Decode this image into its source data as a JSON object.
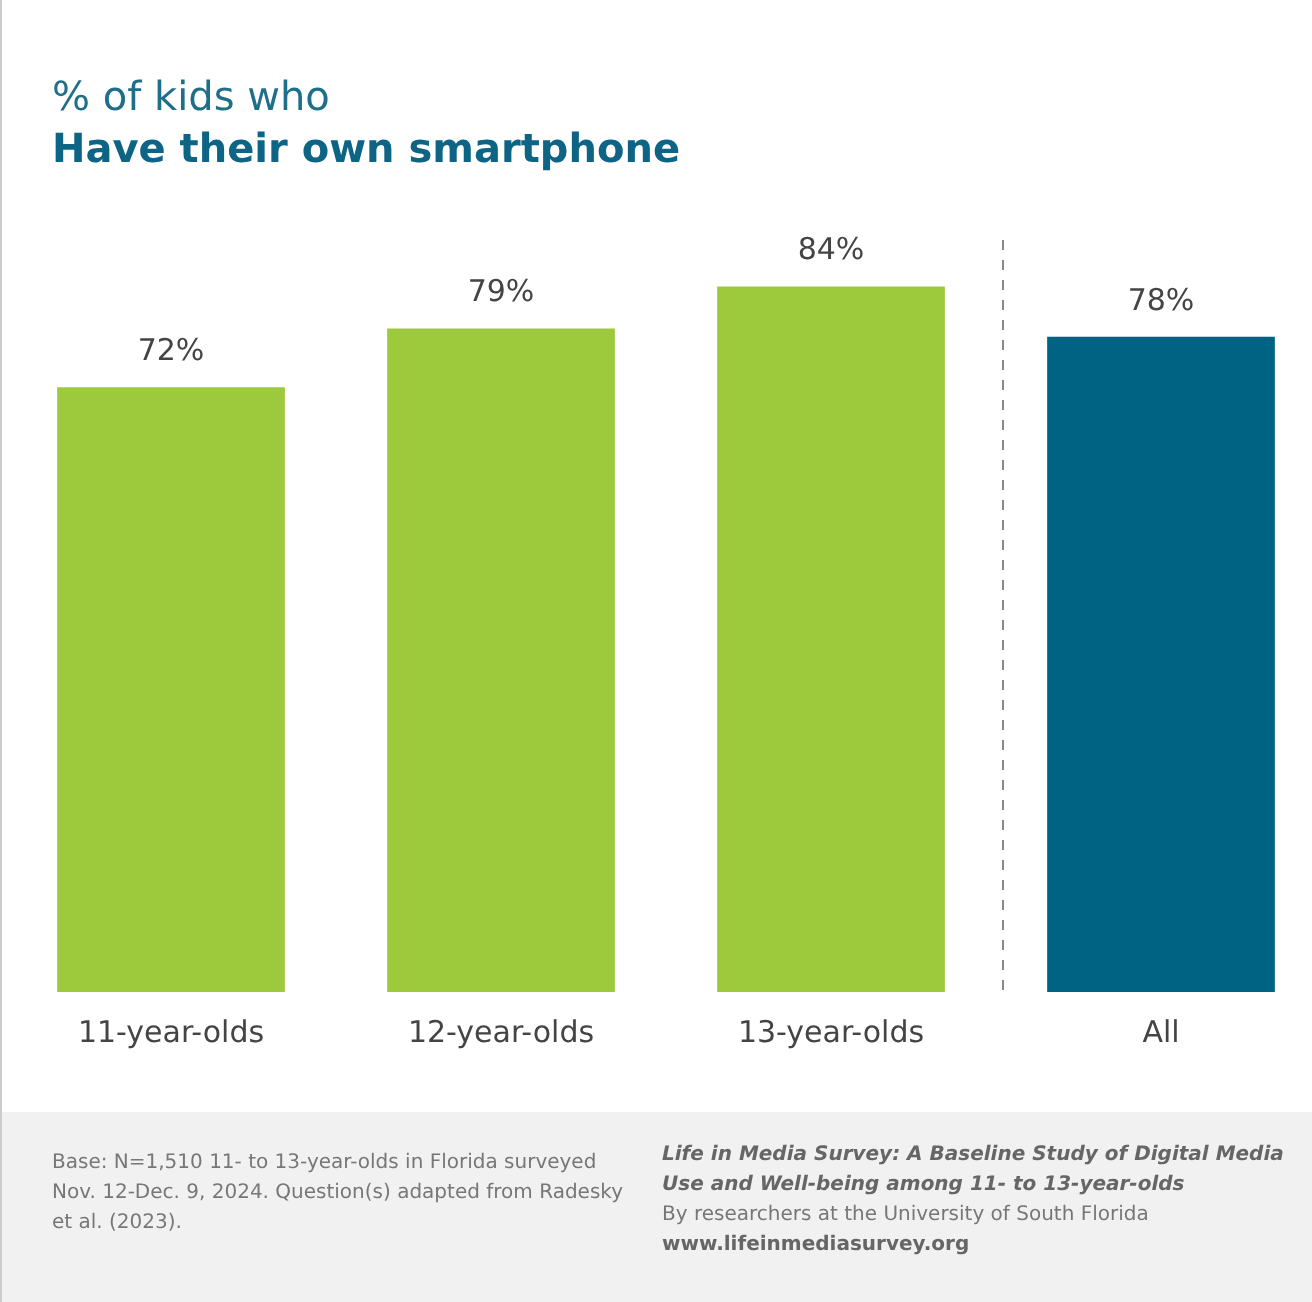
{
  "chart_data": {
    "type": "bar",
    "title": "% of kids who",
    "subtitle": "Have their own smartphone",
    "categories": [
      "11-year-olds",
      "12-year-olds",
      "13-year-olds",
      "All"
    ],
    "values": [
      72,
      79,
      84,
      78
    ],
    "colors": [
      "#9dc93c",
      "#9dc93c",
      "#9dc93c",
      "#006384"
    ],
    "value_labels": [
      "72%",
      "79%",
      "84%",
      "78%"
    ],
    "grid": false,
    "legend": false,
    "tick_labels": "x",
    "annotations": [
      "Base: N=1,510 11- to 13-year-olds in Florida surveyed Nov. 12-Dec. 9, 2024. Question(s) adapted from Radesky et al. (2023).",
      "Life in Media Survey: A Baseline Study of Digital Media Use and Well-being among 11- to 13-year-olds",
      "By researchers at the University of South Florida",
      "www.lifeinmediasurvey.org"
    ]
  }
}
